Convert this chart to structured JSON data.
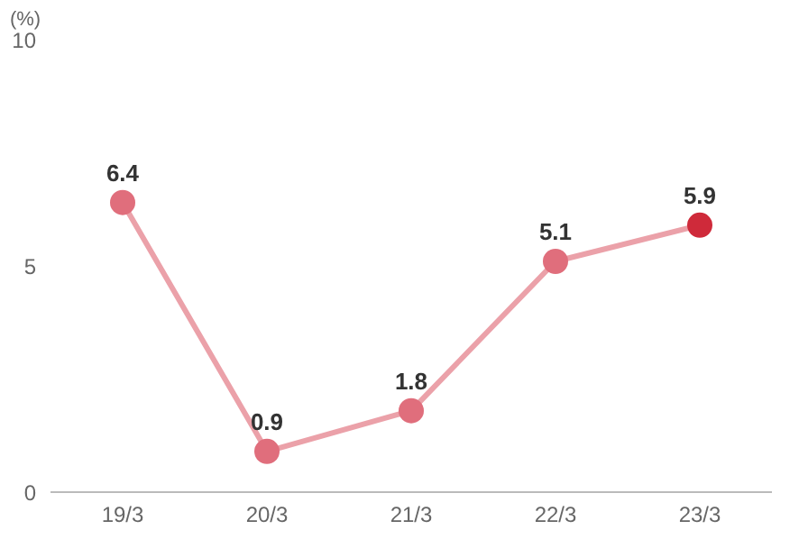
{
  "chart_data": {
    "type": "line",
    "ylabel": "(%)",
    "categories": [
      "19/3",
      "20/3",
      "21/3",
      "22/3",
      "23/3"
    ],
    "series": [
      {
        "color": "#eba1a9",
        "colors": [
          "#e06e7c",
          "#e06e7c",
          "#e06e7c",
          "#e06e7c",
          "#cf2a3a"
        ],
        "values": [
          6.4,
          0.9,
          1.8,
          5.1,
          5.9
        ]
      }
    ],
    "ylim": [
      0,
      10
    ],
    "yticks": [
      0,
      5,
      10
    ],
    "grid": false,
    "legend": false,
    "marker": "circle",
    "line_style": "solid",
    "data_labels": true
  }
}
